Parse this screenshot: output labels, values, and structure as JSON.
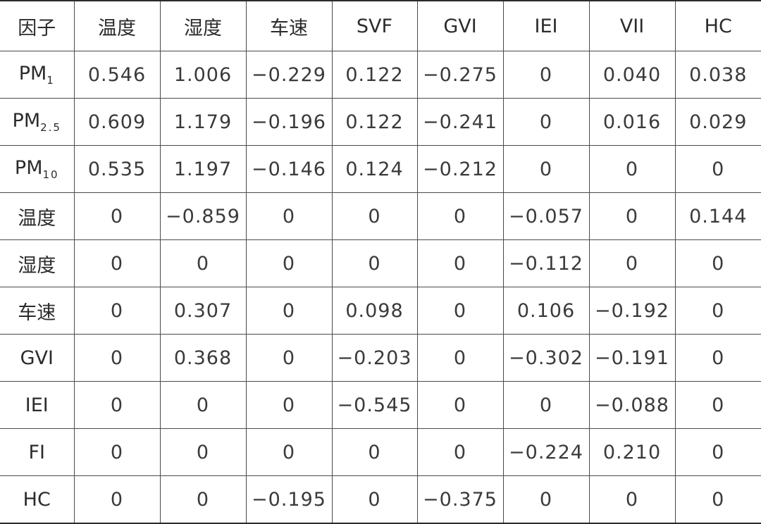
{
  "table": {
    "headers": [
      "因子",
      "温度",
      "湿度",
      "车速",
      "SVF",
      "GVI",
      "IEI",
      "VII",
      "HC"
    ],
    "rows": [
      {
        "label_main": "PM",
        "label_sub": "1",
        "cells": [
          "0.546",
          "1.006",
          "−0.229",
          "0.122",
          "−0.275",
          "0",
          "0.040",
          "0.038"
        ]
      },
      {
        "label_main": "PM",
        "label_sub": "2.5",
        "cells": [
          "0.609",
          "1.179",
          "−0.196",
          "0.122",
          "−0.241",
          "0",
          "0.016",
          "0.029"
        ]
      },
      {
        "label_main": "PM",
        "label_sub": "10",
        "cells": [
          "0.535",
          "1.197",
          "−0.146",
          "0.124",
          "−0.212",
          "0",
          "0",
          "0"
        ]
      },
      {
        "label_main": "温度",
        "label_sub": "",
        "cells": [
          "0",
          "−0.859",
          "0",
          "0",
          "0",
          "−0.057",
          "0",
          "0.144"
        ]
      },
      {
        "label_main": "湿度",
        "label_sub": "",
        "cells": [
          "0",
          "0",
          "0",
          "0",
          "0",
          "−0.112",
          "0",
          "0"
        ]
      },
      {
        "label_main": "车速",
        "label_sub": "",
        "cells": [
          "0",
          "0.307",
          "0",
          "0.098",
          "0",
          "0.106",
          "−0.192",
          "0"
        ]
      },
      {
        "label_main": "GVI",
        "label_sub": "",
        "cells": [
          "0",
          "0.368",
          "0",
          "−0.203",
          "0",
          "−0.302",
          "−0.191",
          "0"
        ]
      },
      {
        "label_main": "IEI",
        "label_sub": "",
        "cells": [
          "0",
          "0",
          "0",
          "−0.545",
          "0",
          "0",
          "−0.088",
          "0"
        ]
      },
      {
        "label_main": "FI",
        "label_sub": "",
        "cells": [
          "0",
          "0",
          "0",
          "0",
          "0",
          "−0.224",
          "0.210",
          "0"
        ]
      },
      {
        "label_main": "HC",
        "label_sub": "",
        "cells": [
          "0",
          "0",
          "−0.195",
          "0",
          "−0.375",
          "0",
          "0",
          "0"
        ]
      }
    ]
  }
}
